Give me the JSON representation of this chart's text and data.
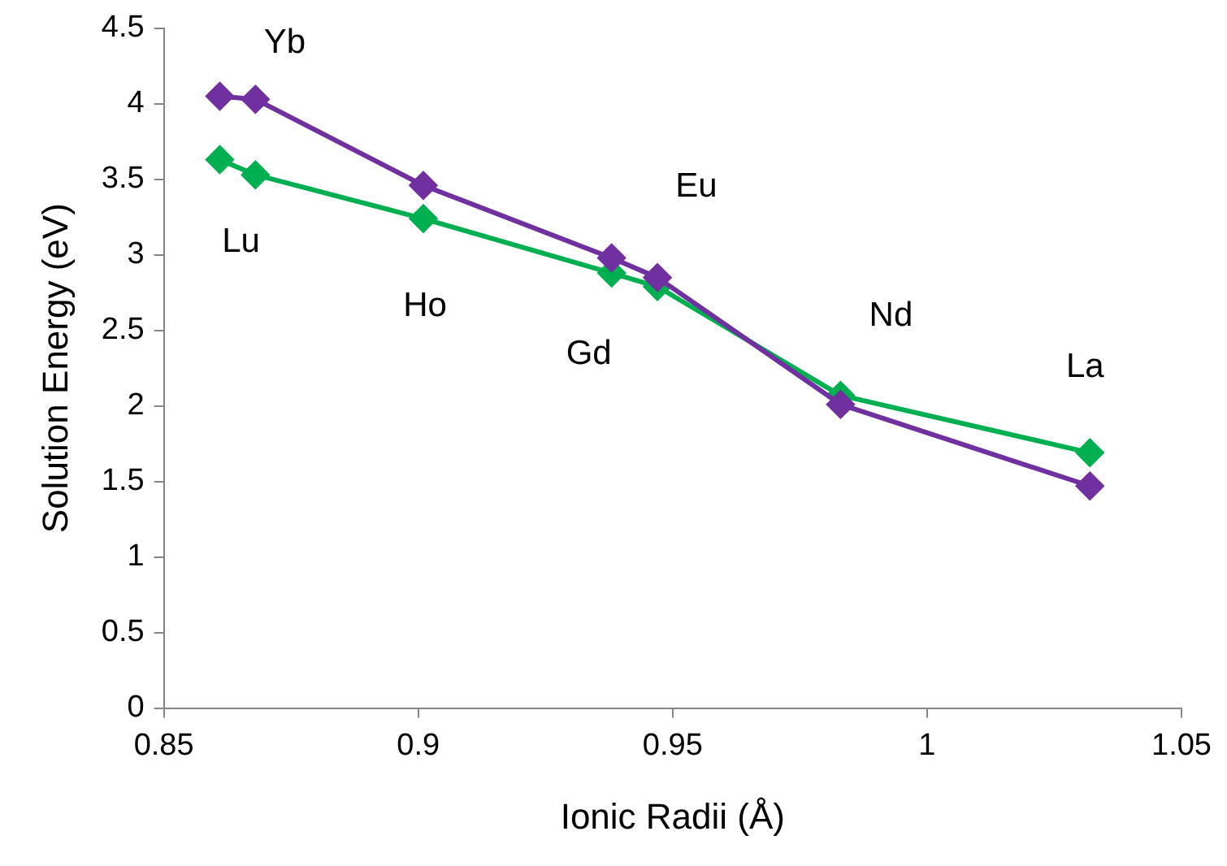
{
  "chart_data": {
    "type": "line",
    "xlabel": "Ionic Radii (Å)",
    "ylabel": "Solution Energy (eV)",
    "x": [
      0.861,
      0.868,
      0.901,
      0.938,
      0.947,
      0.983,
      1.032
    ],
    "series": [
      {
        "color": "#7030a0",
        "values": [
          4.05,
          4.03,
          3.46,
          2.98,
          2.85,
          2.01,
          1.47
        ]
      },
      {
        "color": "#00b050",
        "values": [
          3.63,
          3.53,
          3.24,
          2.88,
          2.79,
          2.07,
          1.69
        ]
      }
    ],
    "xlim": [
      0.85,
      1.05
    ],
    "xticks": [
      0.85,
      0.9,
      0.95,
      1,
      1.05
    ],
    "ylim": [
      0,
      4.5
    ],
    "yticks": [
      0,
      0.5,
      1,
      1.5,
      2,
      2.5,
      3,
      3.5,
      4,
      4.5
    ],
    "grid": false,
    "legend": false,
    "marker": "diamond",
    "line_style": "solid",
    "annotations": [
      "Lu",
      "Yb",
      "Ho",
      "Gd",
      "Eu",
      "Nd",
      "La"
    ]
  }
}
